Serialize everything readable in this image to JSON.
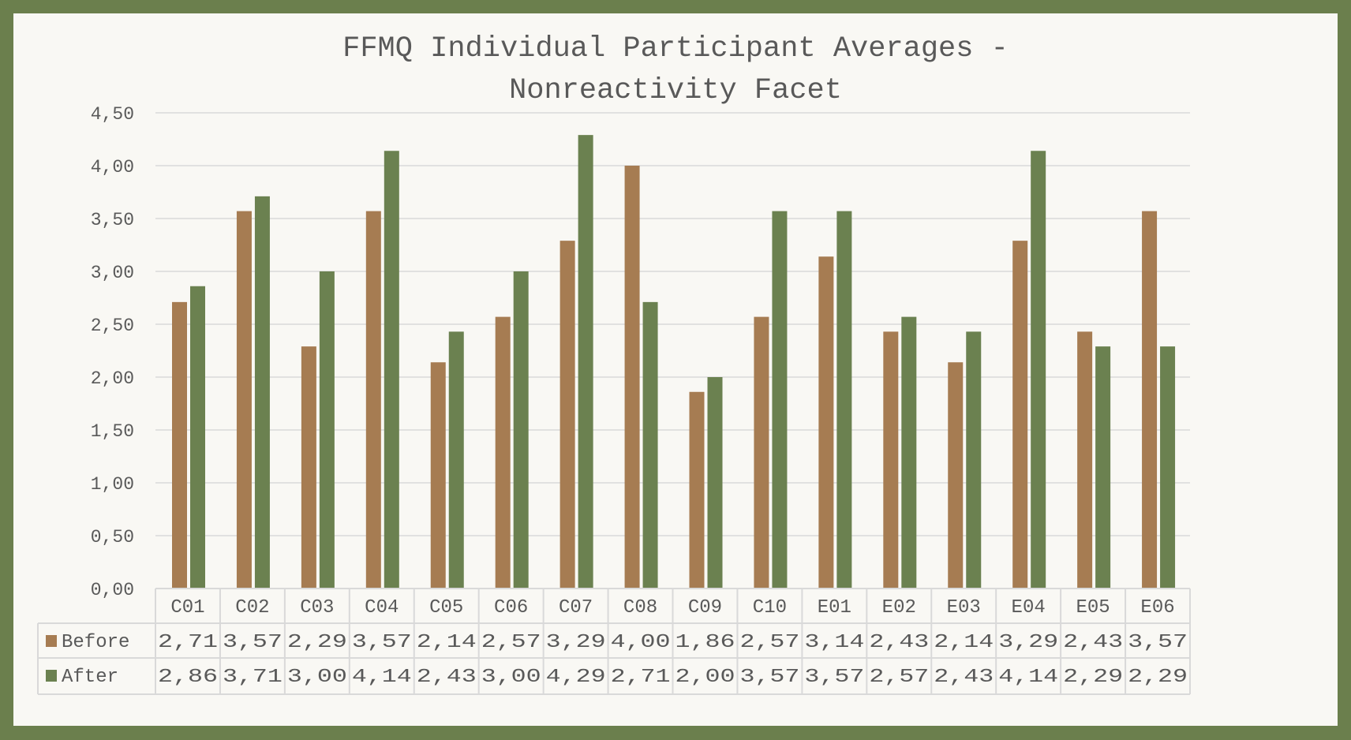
{
  "chart_data": {
    "type": "bar",
    "title_lines": [
      "FFMQ Individual Participant Averages -",
      "Nonreactivity Facet"
    ],
    "categories": [
      "C01",
      "C02",
      "C03",
      "C04",
      "C05",
      "C06",
      "C07",
      "C08",
      "C09",
      "C10",
      "E01",
      "E02",
      "E03",
      "E04",
      "E05",
      "E06"
    ],
    "series": [
      {
        "name": "Before",
        "color": "#a67c52",
        "values": [
          2.71,
          3.57,
          2.29,
          3.57,
          2.14,
          2.57,
          3.29,
          4.0,
          1.86,
          2.57,
          3.14,
          2.43,
          2.14,
          3.29,
          2.43,
          3.57
        ]
      },
      {
        "name": "After",
        "color": "#6b8150",
        "values": [
          2.86,
          3.71,
          3.0,
          4.14,
          2.43,
          3.0,
          4.29,
          2.71,
          2.0,
          3.57,
          3.57,
          2.57,
          2.43,
          4.14,
          2.29,
          2.29
        ]
      }
    ],
    "ylim": [
      0,
      4.5
    ],
    "yticks": [
      0,
      0.5,
      1,
      1.5,
      2,
      2.5,
      3,
      3.5,
      4,
      4.5
    ],
    "ytick_labels": [
      "0,00",
      "0,50",
      "1,00",
      "1,50",
      "2,00",
      "2,50",
      "3,00",
      "3,50",
      "4,00",
      "4,50"
    ],
    "grid": true,
    "legend": "data-table-below",
    "xlabel": "",
    "ylabel": ""
  }
}
